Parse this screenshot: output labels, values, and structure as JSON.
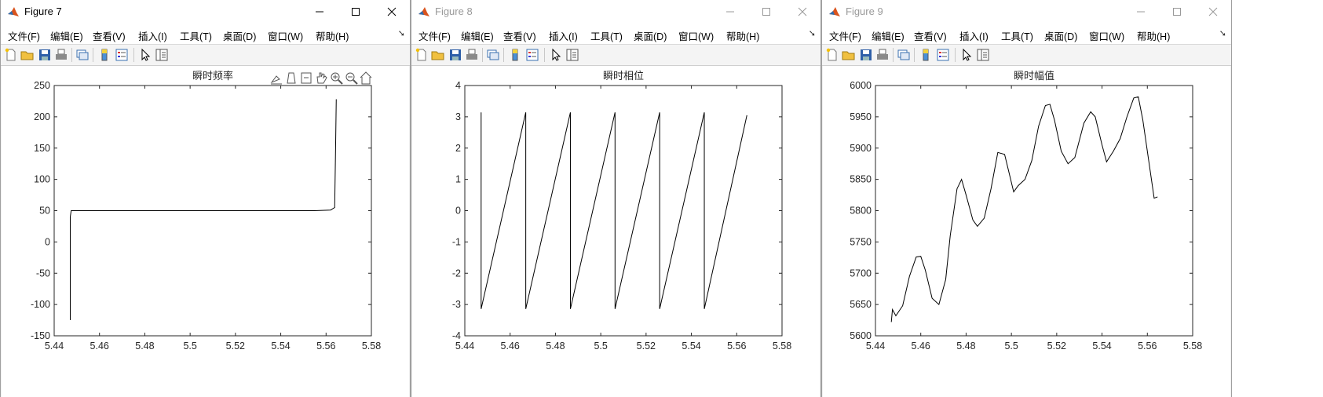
{
  "menu_labels": [
    "文件(F)",
    "编辑(E)",
    "查看(V)",
    "插入(I)",
    "工具(T)",
    "桌面(D)",
    "窗口(W)",
    "帮助(H)"
  ],
  "windows": [
    {
      "title": "Figure 7",
      "active": true,
      "axes": {
        "title": "瞬时频率",
        "xlim": [
          5.44,
          5.58
        ],
        "ylim": [
          -150,
          250
        ],
        "xticks": [
          "5.44",
          "5.46",
          "5.48",
          "5.5",
          "5.52",
          "5.54",
          "5.56",
          "5.58"
        ],
        "yticks": [
          "250",
          "200",
          "150",
          "100",
          "50",
          "0",
          "-50",
          "-100",
          "-150"
        ]
      }
    },
    {
      "title": "Figure 8",
      "active": false,
      "axes": {
        "title": "瞬时相位",
        "xlim": [
          5.44,
          5.58
        ],
        "ylim": [
          -4,
          4
        ],
        "xticks": [
          "5.44",
          "5.46",
          "5.48",
          "5.5",
          "5.52",
          "5.54",
          "5.56",
          "5.58"
        ],
        "yticks": [
          "4",
          "3",
          "2",
          "1",
          "0",
          "-1",
          "-2",
          "-3",
          "-4"
        ]
      }
    },
    {
      "title": "Figure 9",
      "active": false,
      "axes": {
        "title": "瞬时幅值",
        "xlim": [
          5.44,
          5.58
        ],
        "ylim": [
          5600,
          6000
        ],
        "xticks": [
          "5.44",
          "5.46",
          "5.48",
          "5.5",
          "5.52",
          "5.54",
          "5.56",
          "5.58"
        ],
        "yticks": [
          "6000",
          "5950",
          "5900",
          "5850",
          "5800",
          "5750",
          "5700",
          "5650",
          "5600"
        ]
      }
    }
  ],
  "chart_data": [
    {
      "type": "line",
      "title": "瞬时频率",
      "xlim": [
        5.44,
        5.58
      ],
      "ylim": [
        -150,
        250
      ],
      "series": [
        {
          "x": [
            5.4471,
            5.4471,
            5.4475,
            5.449,
            5.46,
            5.48,
            5.5,
            5.52,
            5.54,
            5.555,
            5.562,
            5.5638,
            5.5642,
            5.5645
          ],
          "y": [
            -125,
            40,
            50,
            50,
            50,
            50,
            50,
            50,
            50,
            50,
            51,
            55,
            150,
            228
          ]
        }
      ]
    },
    {
      "type": "line",
      "title": "瞬时相位",
      "xlim": [
        5.44,
        5.58
      ],
      "ylim": [
        -4,
        4
      ],
      "series": [
        {
          "x": [
            5.4472,
            5.4472,
            5.4669,
            5.4669,
            5.4866,
            5.4866,
            5.5063,
            5.5063,
            5.526,
            5.526,
            5.5457,
            5.5457,
            5.5645
          ],
          "y": [
            3.14,
            -3.14,
            3.14,
            -3.14,
            3.14,
            -3.14,
            3.14,
            -3.14,
            3.14,
            -3.14,
            3.14,
            -3.14,
            3.05
          ]
        }
      ]
    },
    {
      "type": "line",
      "title": "瞬时幅值",
      "xlim": [
        5.44,
        5.58
      ],
      "ylim": [
        5600,
        6000
      ],
      "series": [
        {
          "x": [
            5.447,
            5.4475,
            5.449,
            5.452,
            5.455,
            5.458,
            5.46,
            5.462,
            5.465,
            5.468,
            5.471,
            5.473,
            5.476,
            5.478,
            5.48,
            5.483,
            5.485,
            5.488,
            5.491,
            5.494,
            5.497,
            5.499,
            5.501,
            5.503,
            5.506,
            5.509,
            5.512,
            5.515,
            5.517,
            5.519,
            5.522,
            5.525,
            5.528,
            5.532,
            5.535,
            5.537,
            5.54,
            5.542,
            5.545,
            5.548,
            5.551,
            5.554,
            5.556,
            5.558,
            5.561,
            5.563,
            5.5645
          ],
          "y": [
            5622,
            5642,
            5632,
            5648,
            5695,
            5726,
            5727,
            5705,
            5660,
            5650,
            5690,
            5760,
            5835,
            5850,
            5825,
            5785,
            5775,
            5788,
            5835,
            5893,
            5890,
            5860,
            5830,
            5840,
            5850,
            5880,
            5935,
            5968,
            5970,
            5945,
            5895,
            5875,
            5885,
            5940,
            5958,
            5950,
            5905,
            5878,
            5895,
            5915,
            5950,
            5980,
            5982,
            5945,
            5870,
            5820,
            5822
          ]
        }
      ]
    }
  ]
}
